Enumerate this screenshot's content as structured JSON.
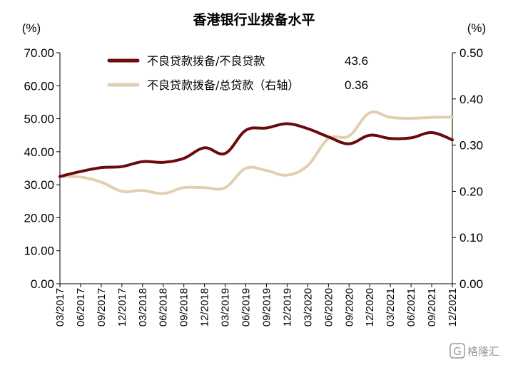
{
  "chart_data": {
    "type": "line",
    "title": "香港银行业拨备水平",
    "left_unit": "(%)",
    "right_unit": "(%)",
    "left_axis": {
      "min": 0,
      "max": 70,
      "step": 10,
      "decimals": 2
    },
    "right_axis": {
      "min": 0,
      "max": 0.5,
      "step": 0.1,
      "decimals": 2
    },
    "categories": [
      "03/2017",
      "06/2017",
      "09/2017",
      "12/2017",
      "03/2018",
      "06/2018",
      "09/2018",
      "12/2018",
      "03/2019",
      "06/2019",
      "09/2019",
      "12/2019",
      "03/2020",
      "06/2020",
      "09/2020",
      "12/2020",
      "03/2021",
      "06/2021",
      "09/2021",
      "12/2021"
    ],
    "series": [
      {
        "name": "不良贷款拨备/不良贷款",
        "axis": "left",
        "color": "#6b0a0a",
        "latest_label": "43.6",
        "values": [
          32.5,
          34.0,
          35.2,
          35.5,
          37.0,
          36.8,
          38.0,
          41.2,
          39.5,
          46.5,
          47.2,
          48.5,
          47.0,
          44.5,
          42.4,
          45.0,
          44.0,
          44.2,
          45.8,
          43.6
        ]
      },
      {
        "name": "不良贷款拨备/总贷款（右轴）",
        "axis": "right",
        "color": "#e2cfb2",
        "latest_label": "0.36",
        "values": [
          0.232,
          0.231,
          0.22,
          0.2,
          0.202,
          0.195,
          0.208,
          0.208,
          0.208,
          0.25,
          0.245,
          0.235,
          0.256,
          0.314,
          0.32,
          0.37,
          0.36,
          0.358,
          0.36,
          0.361
        ]
      }
    ],
    "grid": false,
    "legend_position": "top-center"
  },
  "watermark": {
    "glyph": "G",
    "text": "格隆汇"
  }
}
